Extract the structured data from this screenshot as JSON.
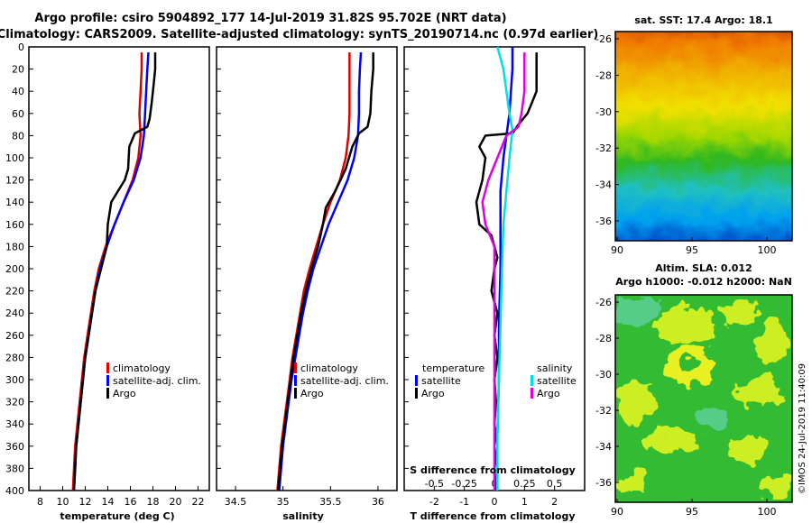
{
  "header": {
    "title_line1": "Argo profile: csiro 5904892_177 14-Jul-2019 31.82S 95.702E (NRT data)",
    "title_line2": "Climatology: CARS2009. Satellite-adjusted climatology: synTS_20190714.nc (0.97d earlier)"
  },
  "colors": {
    "climatology": "#e00000",
    "satellite_adj": "#0000ff",
    "argo": "#000000",
    "sal_satellite": "#00e0e0",
    "sal_argo": "#e000e0"
  },
  "chart_data": [
    {
      "type": "line",
      "id": "temperature",
      "xlabel": "temperature (deg C)",
      "ylabel": "",
      "xlim": [
        7,
        23
      ],
      "ylim": [
        400,
        0
      ],
      "xticks": [
        "8",
        "10",
        "12",
        "14",
        "16",
        "18",
        "20",
        "22"
      ],
      "xtick_values": [
        8,
        10,
        12,
        14,
        16,
        18,
        20,
        22
      ],
      "yticks": [
        "0",
        "20",
        "40",
        "60",
        "80",
        "100",
        "120",
        "140",
        "160",
        "180",
        "200",
        "220",
        "240",
        "260",
        "280",
        "300",
        "320",
        "340",
        "360",
        "380",
        "400"
      ],
      "ytick_values": [
        0,
        20,
        40,
        60,
        80,
        100,
        120,
        140,
        160,
        180,
        200,
        220,
        240,
        260,
        280,
        300,
        320,
        340,
        360,
        380,
        400
      ],
      "legend": [
        "climatology",
        "satellite-adj. clim.",
        "Argo"
      ],
      "series": [
        {
          "name": "climatology",
          "color": "#e00000",
          "points": [
            [
              17.0,
              5
            ],
            [
              17.0,
              20
            ],
            [
              16.9,
              40
            ],
            [
              16.8,
              60
            ],
            [
              16.9,
              80
            ],
            [
              16.7,
              100
            ],
            [
              16.2,
              120
            ],
            [
              15.4,
              140
            ],
            [
              14.6,
              160
            ],
            [
              13.8,
              180
            ],
            [
              13.2,
              200
            ],
            [
              12.8,
              220
            ],
            [
              12.5,
              240
            ],
            [
              12.2,
              260
            ],
            [
              11.9,
              280
            ],
            [
              11.7,
              300
            ],
            [
              11.5,
              320
            ],
            [
              11.3,
              340
            ],
            [
              11.1,
              360
            ],
            [
              11.0,
              380
            ],
            [
              10.9,
              400
            ]
          ]
        },
        {
          "name": "satellite-adj. clim.",
          "color": "#0000ff",
          "points": [
            [
              17.6,
              5
            ],
            [
              17.5,
              20
            ],
            [
              17.4,
              40
            ],
            [
              17.3,
              60
            ],
            [
              17.2,
              80
            ],
            [
              16.9,
              100
            ],
            [
              16.3,
              120
            ],
            [
              15.4,
              140
            ],
            [
              14.6,
              160
            ],
            [
              13.9,
              180
            ],
            [
              13.3,
              200
            ],
            [
              12.9,
              220
            ],
            [
              12.6,
              240
            ],
            [
              12.3,
              260
            ],
            [
              12.0,
              280
            ],
            [
              11.8,
              300
            ],
            [
              11.6,
              320
            ],
            [
              11.4,
              340
            ],
            [
              11.2,
              360
            ],
            [
              11.1,
              380
            ],
            [
              11.0,
              400
            ]
          ]
        },
        {
          "name": "Argo",
          "color": "#000000",
          "points": [
            [
              18.2,
              5
            ],
            [
              18.2,
              20
            ],
            [
              18.1,
              30
            ],
            [
              17.9,
              50
            ],
            [
              17.7,
              65
            ],
            [
              17.5,
              72
            ],
            [
              16.4,
              78
            ],
            [
              15.9,
              90
            ],
            [
              15.8,
              110
            ],
            [
              15.5,
              120
            ],
            [
              14.9,
              130
            ],
            [
              14.3,
              140
            ],
            [
              14.0,
              160
            ],
            [
              13.9,
              180
            ],
            [
              13.4,
              200
            ],
            [
              12.9,
              220
            ],
            [
              12.6,
              240
            ],
            [
              12.3,
              260
            ],
            [
              12.0,
              280
            ],
            [
              11.8,
              300
            ],
            [
              11.6,
              320
            ],
            [
              11.4,
              340
            ],
            [
              11.2,
              360
            ],
            [
              11.1,
              380
            ],
            [
              11.0,
              400
            ]
          ]
        }
      ]
    },
    {
      "type": "line",
      "id": "salinity",
      "xlabel": "salinity",
      "ylabel": "",
      "xlim": [
        34.3,
        36.2
      ],
      "ylim": [
        400,
        0
      ],
      "xticks": [
        "34.5",
        "35",
        "35.5",
        "36"
      ],
      "xtick_values": [
        34.5,
        35,
        35.5,
        36
      ],
      "legend": [
        "climatology",
        "satellite-adj. clim.",
        "Argo"
      ],
      "series": [
        {
          "name": "climatology",
          "color": "#e00000",
          "points": [
            [
              35.7,
              5
            ],
            [
              35.7,
              20
            ],
            [
              35.7,
              40
            ],
            [
              35.7,
              60
            ],
            [
              35.69,
              80
            ],
            [
              35.66,
              100
            ],
            [
              35.6,
              120
            ],
            [
              35.5,
              140
            ],
            [
              35.42,
              160
            ],
            [
              35.35,
              180
            ],
            [
              35.28,
              200
            ],
            [
              35.22,
              220
            ],
            [
              35.18,
              240
            ],
            [
              35.14,
              260
            ],
            [
              35.1,
              280
            ],
            [
              35.07,
              300
            ],
            [
              35.04,
              320
            ],
            [
              35.01,
              340
            ],
            [
              34.98,
              360
            ],
            [
              34.96,
              380
            ],
            [
              34.94,
              400
            ]
          ]
        },
        {
          "name": "satellite-adj. clim.",
          "color": "#0000ff",
          "points": [
            [
              35.82,
              5
            ],
            [
              35.81,
              20
            ],
            [
              35.8,
              40
            ],
            [
              35.8,
              60
            ],
            [
              35.79,
              80
            ],
            [
              35.75,
              100
            ],
            [
              35.68,
              120
            ],
            [
              35.58,
              140
            ],
            [
              35.48,
              160
            ],
            [
              35.4,
              180
            ],
            [
              35.32,
              200
            ],
            [
              35.26,
              220
            ],
            [
              35.21,
              240
            ],
            [
              35.17,
              260
            ],
            [
              35.13,
              280
            ],
            [
              35.09,
              300
            ],
            [
              35.06,
              320
            ],
            [
              35.03,
              340
            ],
            [
              35.0,
              360
            ],
            [
              34.98,
              380
            ],
            [
              34.96,
              400
            ]
          ]
        },
        {
          "name": "Argo",
          "color": "#000000",
          "points": [
            [
              35.95,
              5
            ],
            [
              35.95,
              20
            ],
            [
              35.93,
              40
            ],
            [
              35.92,
              60
            ],
            [
              35.89,
              72
            ],
            [
              35.8,
              78
            ],
            [
              35.73,
              90
            ],
            [
              35.66,
              110
            ],
            [
              35.55,
              130
            ],
            [
              35.45,
              145
            ],
            [
              35.42,
              160
            ],
            [
              35.37,
              180
            ],
            [
              35.3,
              200
            ],
            [
              35.24,
              220
            ],
            [
              35.19,
              240
            ],
            [
              35.15,
              260
            ],
            [
              35.11,
              280
            ],
            [
              35.08,
              300
            ],
            [
              35.05,
              320
            ],
            [
              35.02,
              340
            ],
            [
              34.99,
              360
            ],
            [
              34.97,
              380
            ],
            [
              34.95,
              400
            ]
          ]
        }
      ]
    },
    {
      "type": "line",
      "id": "difference",
      "xlabel": "T difference from climatology",
      "xlabel_top": "S difference from climatology",
      "xlim": [
        -3,
        3
      ],
      "ylim": [
        400,
        0
      ],
      "xticks": [
        "-2",
        "-1",
        "0",
        "1",
        "2"
      ],
      "xtick_values": [
        -2,
        -1,
        0,
        1,
        2
      ],
      "xticks_top": [
        "-0.5",
        "-0.25",
        "0",
        "0.25",
        "0.5"
      ],
      "xtick_top_values": [
        -2,
        -1,
        0,
        1,
        2
      ],
      "legend_temperature_title": "temperature",
      "legend_salinity_title": "salinity",
      "legend_temperature": [
        "satellite",
        "Argo"
      ],
      "legend_salinity": [
        "satellite",
        "Argo"
      ],
      "series": [
        {
          "name": "temperature satellite",
          "color": "#0000ff",
          "points": [
            [
              0.6,
              0
            ],
            [
              0.6,
              20
            ],
            [
              0.55,
              40
            ],
            [
              0.5,
              60
            ],
            [
              0.4,
              80
            ],
            [
              0.3,
              100
            ],
            [
              0.2,
              130
            ],
            [
              0.2,
              160
            ],
            [
              0.2,
              200
            ],
            [
              0.15,
              250
            ],
            [
              0.15,
              300
            ],
            [
              0.1,
              350
            ],
            [
              0.1,
              400
            ]
          ]
        },
        {
          "name": "temperature Argo",
          "color": "#000000",
          "points": [
            [
              1.4,
              5
            ],
            [
              1.4,
              20
            ],
            [
              1.4,
              40
            ],
            [
              1.1,
              60
            ],
            [
              0.8,
              70
            ],
            [
              0.6,
              78
            ],
            [
              -0.3,
              80
            ],
            [
              -0.5,
              90
            ],
            [
              -0.3,
              100
            ],
            [
              -0.4,
              120
            ],
            [
              -0.6,
              140
            ],
            [
              -0.5,
              160
            ],
            [
              -0.1,
              170
            ],
            [
              0.1,
              190
            ],
            [
              0.0,
              200
            ],
            [
              -0.1,
              220
            ],
            [
              0.1,
              240
            ],
            [
              0.0,
              260
            ],
            [
              0.1,
              280
            ],
            [
              0.0,
              300
            ],
            [
              0.05,
              320
            ],
            [
              0.0,
              340
            ],
            [
              0.1,
              360
            ],
            [
              0.0,
              380
            ],
            [
              0.05,
              400
            ]
          ]
        },
        {
          "name": "salinity satellite",
          "color": "#00e0e0",
          "points": [
            [
              0.1,
              0
            ],
            [
              0.3,
              20
            ],
            [
              0.4,
              40
            ],
            [
              0.5,
              60
            ],
            [
              0.6,
              75
            ],
            [
              0.5,
              100
            ],
            [
              0.4,
              130
            ],
            [
              0.3,
              160
            ],
            [
              0.25,
              200
            ],
            [
              0.2,
              250
            ],
            [
              0.15,
              300
            ],
            [
              0.1,
              350
            ],
            [
              0.1,
              400
            ]
          ]
        },
        {
          "name": "salinity Argo",
          "color": "#e000e0",
          "points": [
            [
              1.0,
              5
            ],
            [
              1.0,
              20
            ],
            [
              1.0,
              40
            ],
            [
              0.9,
              60
            ],
            [
              0.8,
              72
            ],
            [
              0.4,
              80
            ],
            [
              0.1,
              100
            ],
            [
              -0.2,
              120
            ],
            [
              -0.4,
              140
            ],
            [
              -0.3,
              160
            ],
            [
              0.0,
              180
            ],
            [
              0.0,
              200
            ],
            [
              0.0,
              220
            ],
            [
              0.0,
              260
            ],
            [
              0.0,
              300
            ],
            [
              0.0,
              340
            ],
            [
              0.0,
              400
            ]
          ]
        }
      ]
    }
  ],
  "maps": {
    "sst": {
      "title": "sat. SST: 17.4 Argo: 18.1",
      "yticks": [
        "-26",
        "-28",
        "-30",
        "-32",
        "-34",
        "-36"
      ],
      "xticks": [
        "90",
        "95",
        "100"
      ]
    },
    "sla": {
      "title_line1": "Altim. SLA: 0.012",
      "title_line2": "Argo h1000: -0.012 h2000: NaN",
      "yticks": [
        "-26",
        "-28",
        "-30",
        "-32",
        "-34",
        "-36"
      ],
      "xticks": [
        "90",
        "95",
        "100"
      ]
    }
  },
  "watermark": "©IMOS 24-Jul-2019 11:40:09"
}
